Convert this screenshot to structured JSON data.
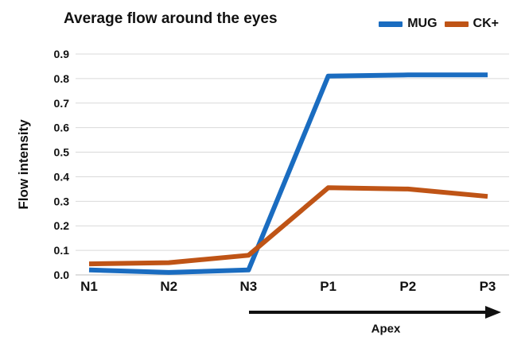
{
  "title": "Average flow around the eyes",
  "legend": {
    "items": [
      {
        "label": "MUG",
        "color": "#1A6CC0"
      },
      {
        "label": "CK+",
        "color": "#BF5416"
      }
    ]
  },
  "annotation": {
    "arrow_label": "Apex",
    "arrow_from_category": "N3",
    "arrow_to_category": "P3"
  },
  "colors": {
    "text": "#111111",
    "gridline": "#D9D9D9",
    "axis_line": "#BFBFBF",
    "arrow": "#111111",
    "series_mug": "#1A6CC0",
    "series_ck": "#BF5416"
  },
  "chart_data": {
    "type": "line",
    "title": "Average flow around the eyes",
    "xlabel": "",
    "ylabel": "Flow intensity",
    "categories": [
      "N1",
      "N2",
      "N3",
      "P1",
      "P2",
      "P3"
    ],
    "series": [
      {
        "name": "MUG",
        "color": "#1A6CC0",
        "values": [
          0.02,
          0.01,
          0.02,
          0.81,
          0.815,
          0.815
        ]
      },
      {
        "name": "CK+",
        "color": "#BF5416",
        "values": [
          0.045,
          0.05,
          0.08,
          0.355,
          0.35,
          0.32
        ]
      }
    ],
    "ylim": [
      0.0,
      0.9
    ],
    "ytick_step": 0.1,
    "yticks": [
      "0.0",
      "0.1",
      "0.2",
      "0.3",
      "0.4",
      "0.5",
      "0.6",
      "0.7",
      "0.8",
      "0.9"
    ],
    "grid": "horizontal",
    "legend_position": "top-right",
    "annotation_arrow_label": "Apex"
  }
}
